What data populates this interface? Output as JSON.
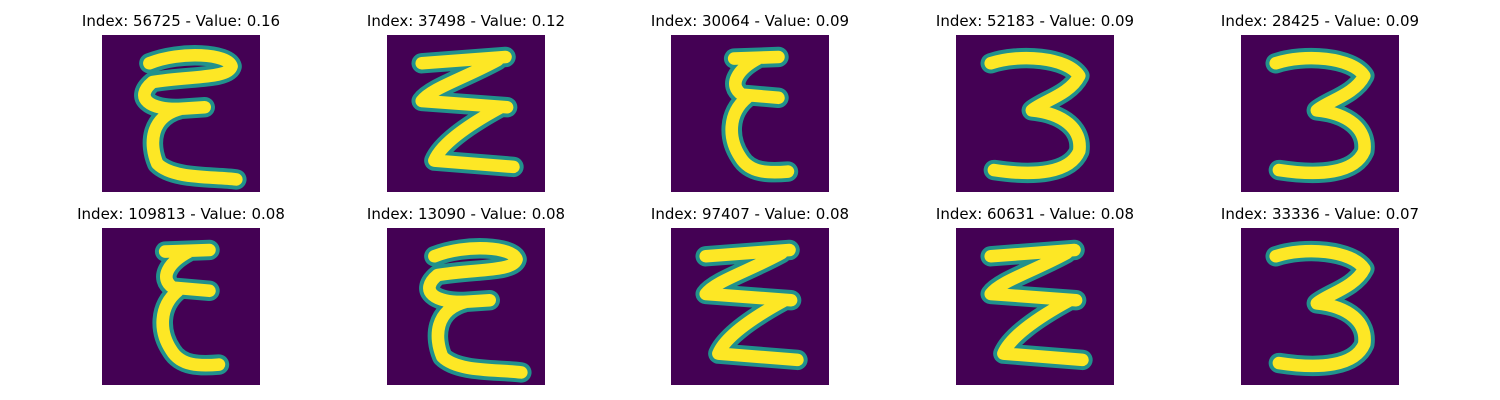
{
  "colors": {
    "background": "#440154",
    "stroke_core": "#fde725",
    "stroke_edge": "#21918c"
  },
  "panels": [
    {
      "title": "Index: 56725 - Value: 0.16",
      "glyph": "epsilon-wide-icon"
    },
    {
      "title": "Index: 37498 - Value: 0.12",
      "glyph": "zigzag-icon"
    },
    {
      "title": "Index: 30064 - Value: 0.09",
      "glyph": "epsilon-narrow-icon"
    },
    {
      "title": "Index: 52183 - Value: 0.09",
      "glyph": "three-icon"
    },
    {
      "title": "Index: 28425 - Value: 0.09",
      "glyph": "three-icon"
    },
    {
      "title": "Index: 109813 - Value: 0.08",
      "glyph": "epsilon-narrow-icon"
    },
    {
      "title": "Index: 13090 - Value: 0.08",
      "glyph": "epsilon-wide-icon"
    },
    {
      "title": "Index: 97407 - Value: 0.08",
      "glyph": "zigzag-icon"
    },
    {
      "title": "Index: 60631 - Value: 0.08",
      "glyph": "zigzag-icon"
    },
    {
      "title": "Index: 33336 - Value: 0.07",
      "glyph": "three-icon"
    }
  ]
}
